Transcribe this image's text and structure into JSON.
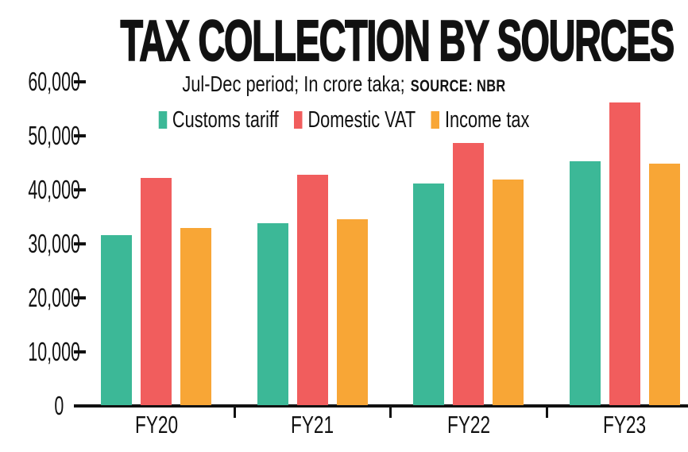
{
  "title": "TAX COLLECTION BY SOURCES",
  "subtitle": {
    "text": "Jul-Dec period; In crore taka;",
    "source_label": "SOURCE: NBR"
  },
  "chart_data": {
    "type": "bar",
    "title": "TAX COLLECTION BY SOURCES",
    "subtitle": "Jul-Dec period; In crore taka; SOURCE: NBR",
    "period": "Jul-Dec",
    "unit": "crore taka",
    "source": "NBR",
    "categories": [
      "FY20",
      "FY21",
      "FY22",
      "FY23"
    ],
    "series": [
      {
        "name": "Customs tariff",
        "color": "#3cb897",
        "values": [
          31500,
          33700,
          41100,
          45200
        ]
      },
      {
        "name": "Domestic VAT",
        "color": "#f15d5d",
        "values": [
          42000,
          42700,
          48500,
          56100
        ]
      },
      {
        "name": "Income tax",
        "color": "#f8a636",
        "values": [
          32800,
          34400,
          41800,
          44700
        ]
      }
    ],
    "ylim": [
      0,
      60000
    ],
    "ytick_step": 10000,
    "ytick_labels": [
      "0",
      "10,000",
      "20,000",
      "30,000",
      "40,000",
      "50,000",
      "60,000"
    ],
    "grid": false,
    "legend_position": "top-center"
  },
  "colors": {
    "text": "#111111",
    "axis": "#111111",
    "background": "#ffffff",
    "customs_tariff": "#3cb897",
    "domestic_vat": "#f15d5d",
    "income_tax": "#f8a636"
  }
}
